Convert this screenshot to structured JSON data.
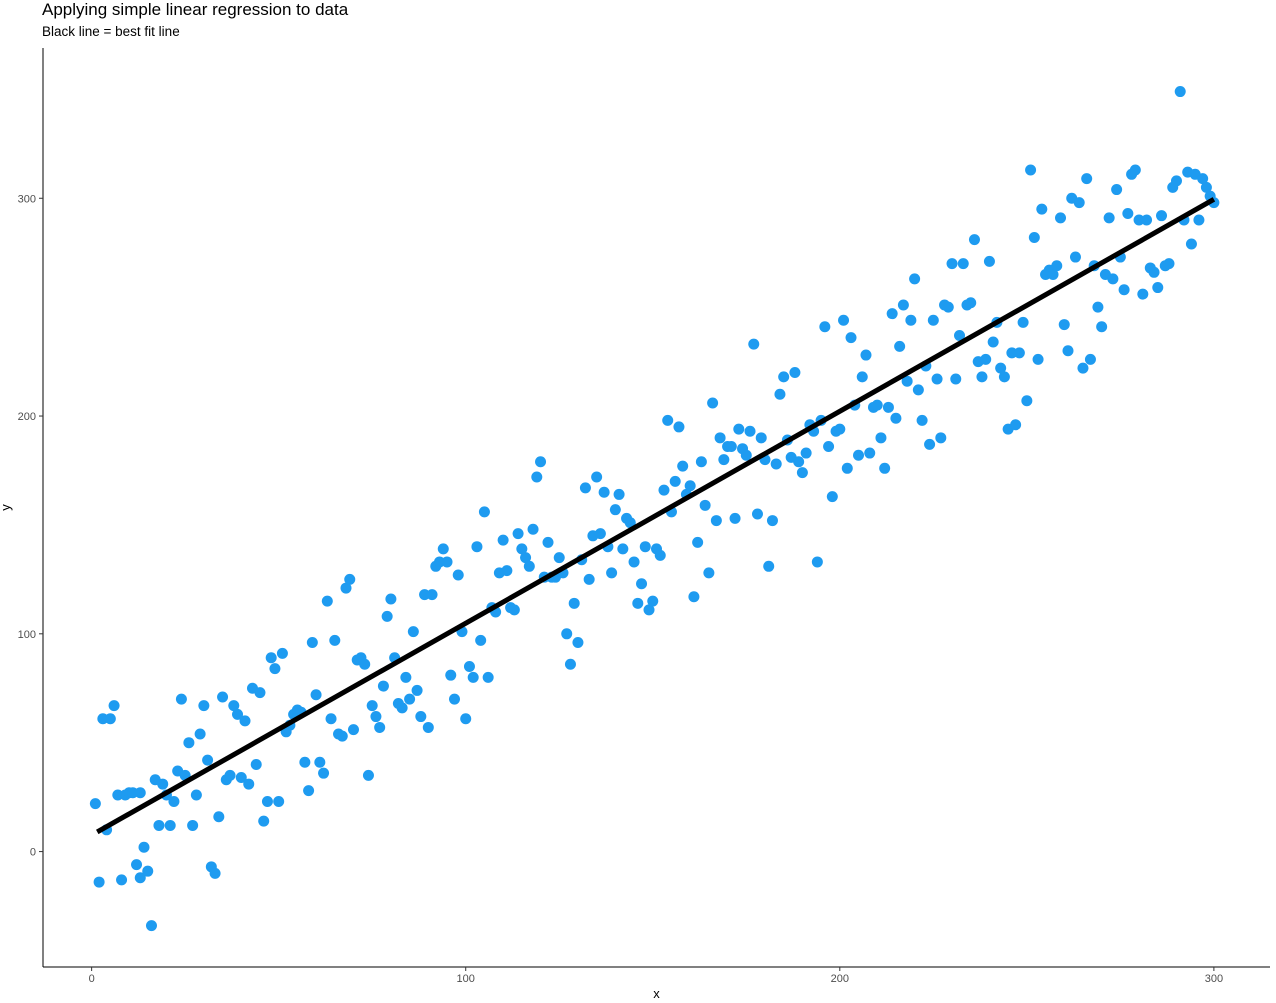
{
  "chart_data": {
    "type": "scatter",
    "title": "Applying simple linear regression to data",
    "subtitle": "Black line = best fit line",
    "xlabel": "x",
    "ylabel": "y",
    "xlim": [
      -13,
      315
    ],
    "ylim": [
      -53,
      369
    ],
    "x_ticks": [
      0,
      100,
      200,
      300
    ],
    "y_ticks": [
      0,
      100,
      200,
      300
    ],
    "grid": false,
    "legend": "none",
    "point_color": "#1e9bf0",
    "line_color": "#000000",
    "fit_line": {
      "x": [
        1.5,
        300
      ],
      "y": [
        9,
        299.5
      ]
    },
    "points": [
      [
        1,
        22
      ],
      [
        2,
        -14
      ],
      [
        3,
        61
      ],
      [
        4,
        10
      ],
      [
        5,
        61
      ],
      [
        6,
        67
      ],
      [
        7,
        26
      ],
      [
        8,
        -13
      ],
      [
        9,
        26
      ],
      [
        10,
        27
      ],
      [
        11,
        27
      ],
      [
        12,
        -6
      ],
      [
        13,
        -12
      ],
      [
        13,
        27
      ],
      [
        14,
        2
      ],
      [
        15,
        -9
      ],
      [
        16,
        -34
      ],
      [
        17,
        33
      ],
      [
        18,
        12
      ],
      [
        19,
        31
      ],
      [
        20,
        26
      ],
      [
        21,
        12
      ],
      [
        22,
        23
      ],
      [
        23,
        37
      ],
      [
        24,
        70
      ],
      [
        25,
        35
      ],
      [
        26,
        50
      ],
      [
        27,
        12
      ],
      [
        28,
        26
      ],
      [
        29,
        54
      ],
      [
        30,
        67
      ],
      [
        31,
        42
      ],
      [
        32,
        -7
      ],
      [
        33,
        -10
      ],
      [
        34,
        16
      ],
      [
        35,
        71
      ],
      [
        36,
        33
      ],
      [
        37,
        35
      ],
      [
        38,
        67
      ],
      [
        39,
        63
      ],
      [
        40,
        34
      ],
      [
        41,
        60
      ],
      [
        42,
        31
      ],
      [
        43,
        75
      ],
      [
        44,
        40
      ],
      [
        45,
        73
      ],
      [
        46,
        14
      ],
      [
        47,
        23
      ],
      [
        48,
        89
      ],
      [
        49,
        84
      ],
      [
        50,
        23
      ],
      [
        51,
        91
      ],
      [
        52,
        55
      ],
      [
        53,
        58
      ],
      [
        54,
        63
      ],
      [
        55,
        65
      ],
      [
        56,
        64
      ],
      [
        57,
        41
      ],
      [
        58,
        28
      ],
      [
        59,
        96
      ],
      [
        60,
        72
      ],
      [
        61,
        41
      ],
      [
        62,
        36
      ],
      [
        63,
        115
      ],
      [
        64,
        61
      ],
      [
        65,
        97
      ],
      [
        66,
        54
      ],
      [
        67,
        53
      ],
      [
        68,
        121
      ],
      [
        69,
        125
      ],
      [
        70,
        56
      ],
      [
        71,
        88
      ],
      [
        72,
        89
      ],
      [
        73,
        86
      ],
      [
        74,
        35
      ],
      [
        75,
        67
      ],
      [
        76,
        62
      ],
      [
        77,
        57
      ],
      [
        78,
        76
      ],
      [
        79,
        108
      ],
      [
        80,
        116
      ],
      [
        81,
        89
      ],
      [
        82,
        68
      ],
      [
        83,
        66
      ],
      [
        84,
        80
      ],
      [
        85,
        70
      ],
      [
        86,
        101
      ],
      [
        87,
        74
      ],
      [
        88,
        62
      ],
      [
        89,
        118
      ],
      [
        90,
        57
      ],
      [
        91,
        118
      ],
      [
        92,
        131
      ],
      [
        93,
        133
      ],
      [
        94,
        139
      ],
      [
        95,
        133
      ],
      [
        96,
        81
      ],
      [
        97,
        70
      ],
      [
        98,
        127
      ],
      [
        99,
        101
      ],
      [
        100,
        61
      ],
      [
        101,
        85
      ],
      [
        102,
        80
      ],
      [
        103,
        140
      ],
      [
        104,
        97
      ],
      [
        105,
        156
      ],
      [
        106,
        80
      ],
      [
        107,
        112
      ],
      [
        108,
        110
      ],
      [
        109,
        128
      ],
      [
        110,
        143
      ],
      [
        111,
        129
      ],
      [
        112,
        112
      ],
      [
        113,
        111
      ],
      [
        114,
        146
      ],
      [
        115,
        139
      ],
      [
        116,
        135
      ],
      [
        117,
        131
      ],
      [
        118,
        148
      ],
      [
        119,
        172
      ],
      [
        120,
        179
      ],
      [
        121,
        126
      ],
      [
        122,
        142
      ],
      [
        123,
        126
      ],
      [
        124,
        126
      ],
      [
        125,
        135
      ],
      [
        126,
        128
      ],
      [
        127,
        100
      ],
      [
        128,
        86
      ],
      [
        129,
        114
      ],
      [
        130,
        96
      ],
      [
        131,
        134
      ],
      [
        132,
        167
      ],
      [
        133,
        125
      ],
      [
        134,
        145
      ],
      [
        135,
        172
      ],
      [
        136,
        146
      ],
      [
        137,
        165
      ],
      [
        138,
        140
      ],
      [
        139,
        128
      ],
      [
        140,
        157
      ],
      [
        141,
        164
      ],
      [
        142,
        139
      ],
      [
        143,
        153
      ],
      [
        144,
        151
      ],
      [
        145,
        133
      ],
      [
        146,
        114
      ],
      [
        147,
        123
      ],
      [
        148,
        140
      ],
      [
        149,
        111
      ],
      [
        150,
        115
      ],
      [
        151,
        139
      ],
      [
        152,
        136
      ],
      [
        153,
        166
      ],
      [
        154,
        198
      ],
      [
        155,
        156
      ],
      [
        156,
        170
      ],
      [
        157,
        195
      ],
      [
        158,
        177
      ],
      [
        159,
        164
      ],
      [
        160,
        168
      ],
      [
        161,
        117
      ],
      [
        162,
        142
      ],
      [
        163,
        179
      ],
      [
        164,
        159
      ],
      [
        165,
        128
      ],
      [
        166,
        206
      ],
      [
        167,
        152
      ],
      [
        168,
        190
      ],
      [
        169,
        180
      ],
      [
        170,
        186
      ],
      [
        171,
        186
      ],
      [
        172,
        153
      ],
      [
        173,
        194
      ],
      [
        174,
        185
      ],
      [
        175,
        182
      ],
      [
        176,
        193
      ],
      [
        177,
        233
      ],
      [
        178,
        155
      ],
      [
        179,
        190
      ],
      [
        180,
        180
      ],
      [
        181,
        131
      ],
      [
        182,
        152
      ],
      [
        183,
        178
      ],
      [
        184,
        210
      ],
      [
        185,
        218
      ],
      [
        186,
        189
      ],
      [
        187,
        181
      ],
      [
        188,
        220
      ],
      [
        189,
        179
      ],
      [
        190,
        174
      ],
      [
        191,
        183
      ],
      [
        192,
        196
      ],
      [
        193,
        193
      ],
      [
        194,
        133
      ],
      [
        195,
        198
      ],
      [
        196,
        241
      ],
      [
        197,
        186
      ],
      [
        198,
        163
      ],
      [
        199,
        193
      ],
      [
        200,
        194
      ],
      [
        201,
        244
      ],
      [
        202,
        176
      ],
      [
        203,
        236
      ],
      [
        204,
        205
      ],
      [
        205,
        182
      ],
      [
        206,
        218
      ],
      [
        207,
        228
      ],
      [
        208,
        183
      ],
      [
        209,
        204
      ],
      [
        210,
        205
      ],
      [
        211,
        190
      ],
      [
        212,
        176
      ],
      [
        213,
        204
      ],
      [
        214,
        247
      ],
      [
        215,
        199
      ],
      [
        216,
        232
      ],
      [
        217,
        251
      ],
      [
        218,
        216
      ],
      [
        219,
        244
      ],
      [
        220,
        263
      ],
      [
        221,
        212
      ],
      [
        222,
        198
      ],
      [
        223,
        223
      ],
      [
        224,
        187
      ],
      [
        225,
        244
      ],
      [
        226,
        217
      ],
      [
        227,
        190
      ],
      [
        228,
        251
      ],
      [
        229,
        250
      ],
      [
        230,
        270
      ],
      [
        231,
        217
      ],
      [
        232,
        237
      ],
      [
        233,
        270
      ],
      [
        234,
        251
      ],
      [
        235,
        252
      ],
      [
        236,
        281
      ],
      [
        237,
        225
      ],
      [
        238,
        218
      ],
      [
        239,
        226
      ],
      [
        240,
        271
      ],
      [
        241,
        234
      ],
      [
        242,
        243
      ],
      [
        243,
        222
      ],
      [
        244,
        218
      ],
      [
        245,
        194
      ],
      [
        246,
        229
      ],
      [
        247,
        196
      ],
      [
        248,
        229
      ],
      [
        249,
        243
      ],
      [
        250,
        207
      ],
      [
        251,
        313
      ],
      [
        252,
        282
      ],
      [
        253,
        226
      ],
      [
        254,
        295
      ],
      [
        255,
        265
      ],
      [
        256,
        267
      ],
      [
        257,
        265
      ],
      [
        258,
        269
      ],
      [
        259,
        291
      ],
      [
        260,
        242
      ],
      [
        261,
        230
      ],
      [
        262,
        300
      ],
      [
        263,
        273
      ],
      [
        264,
        298
      ],
      [
        265,
        222
      ],
      [
        266,
        309
      ],
      [
        267,
        226
      ],
      [
        268,
        269
      ],
      [
        269,
        250
      ],
      [
        270,
        241
      ],
      [
        271,
        265
      ],
      [
        272,
        291
      ],
      [
        273,
        263
      ],
      [
        274,
        304
      ],
      [
        275,
        273
      ],
      [
        276,
        258
      ],
      [
        277,
        293
      ],
      [
        278,
        311
      ],
      [
        279,
        313
      ],
      [
        280,
        290
      ],
      [
        281,
        256
      ],
      [
        282,
        290
      ],
      [
        283,
        268
      ],
      [
        284,
        266
      ],
      [
        285,
        259
      ],
      [
        286,
        292
      ],
      [
        287,
        269
      ],
      [
        288,
        270
      ],
      [
        289,
        305
      ],
      [
        290,
        308
      ],
      [
        291,
        349
      ],
      [
        292,
        290
      ],
      [
        293,
        312
      ],
      [
        294,
        279
      ],
      [
        295,
        311
      ],
      [
        296,
        290
      ],
      [
        297,
        309
      ],
      [
        298,
        305
      ],
      [
        299,
        301
      ],
      [
        300,
        298
      ]
    ]
  }
}
